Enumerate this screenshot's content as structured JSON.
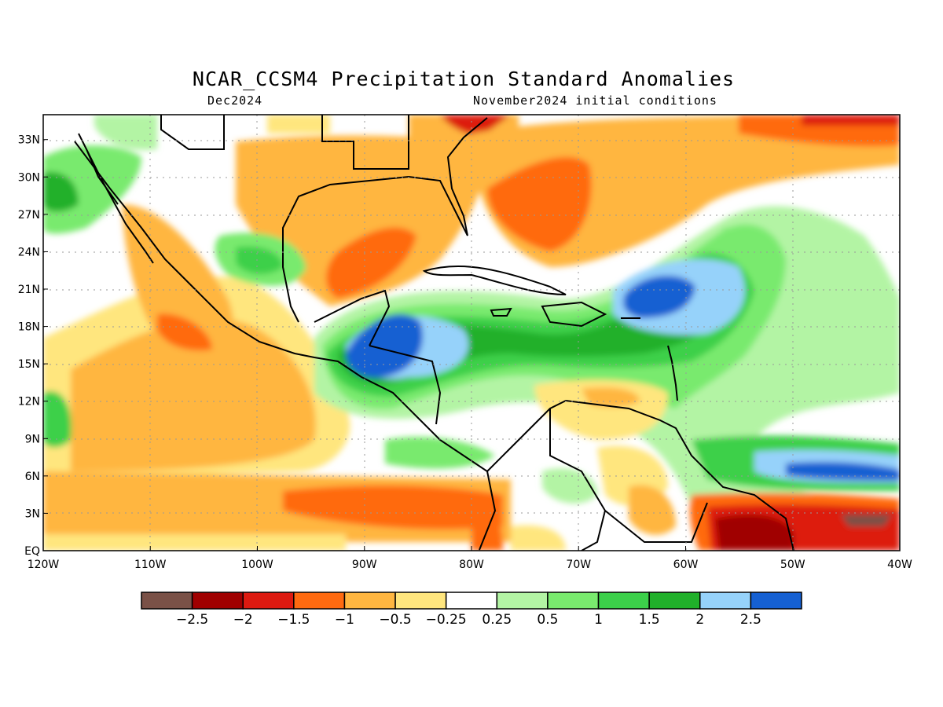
{
  "title": "NCAR_CCSM4 Precipitation Standard Anomalies",
  "subtitle_left": "Dec2024",
  "subtitle_right": "November2024 initial conditions",
  "map": {
    "lon_labels": [
      "120W",
      "110W",
      "100W",
      "90W",
      "80W",
      "70W",
      "60W",
      "50W",
      "40W"
    ],
    "lat_labels": [
      "EQ",
      "3N",
      "6N",
      "9N",
      "12N",
      "15N",
      "18N",
      "21N",
      "24N",
      "27N",
      "30N",
      "33N"
    ],
    "lon_range": [
      -120,
      -40
    ],
    "lat_range": [
      0,
      35
    ],
    "grid": "dotted"
  },
  "colorbar": {
    "labels": [
      "−2.5",
      "−2",
      "−1.5",
      "−1",
      "−0.5",
      "−0.25",
      "0.25",
      "0.5",
      "1",
      "1.5",
      "2",
      "2.5"
    ],
    "colors": [
      "#7a5147",
      "#a00000",
      "#dd1a10",
      "#ff6a10",
      "#ffb640",
      "#ffe67e",
      "#ffffff",
      "#b3f4a4",
      "#79ea6e",
      "#3cd04a",
      "#20b02a",
      "#96d2fa",
      "#1560d2"
    ]
  }
}
